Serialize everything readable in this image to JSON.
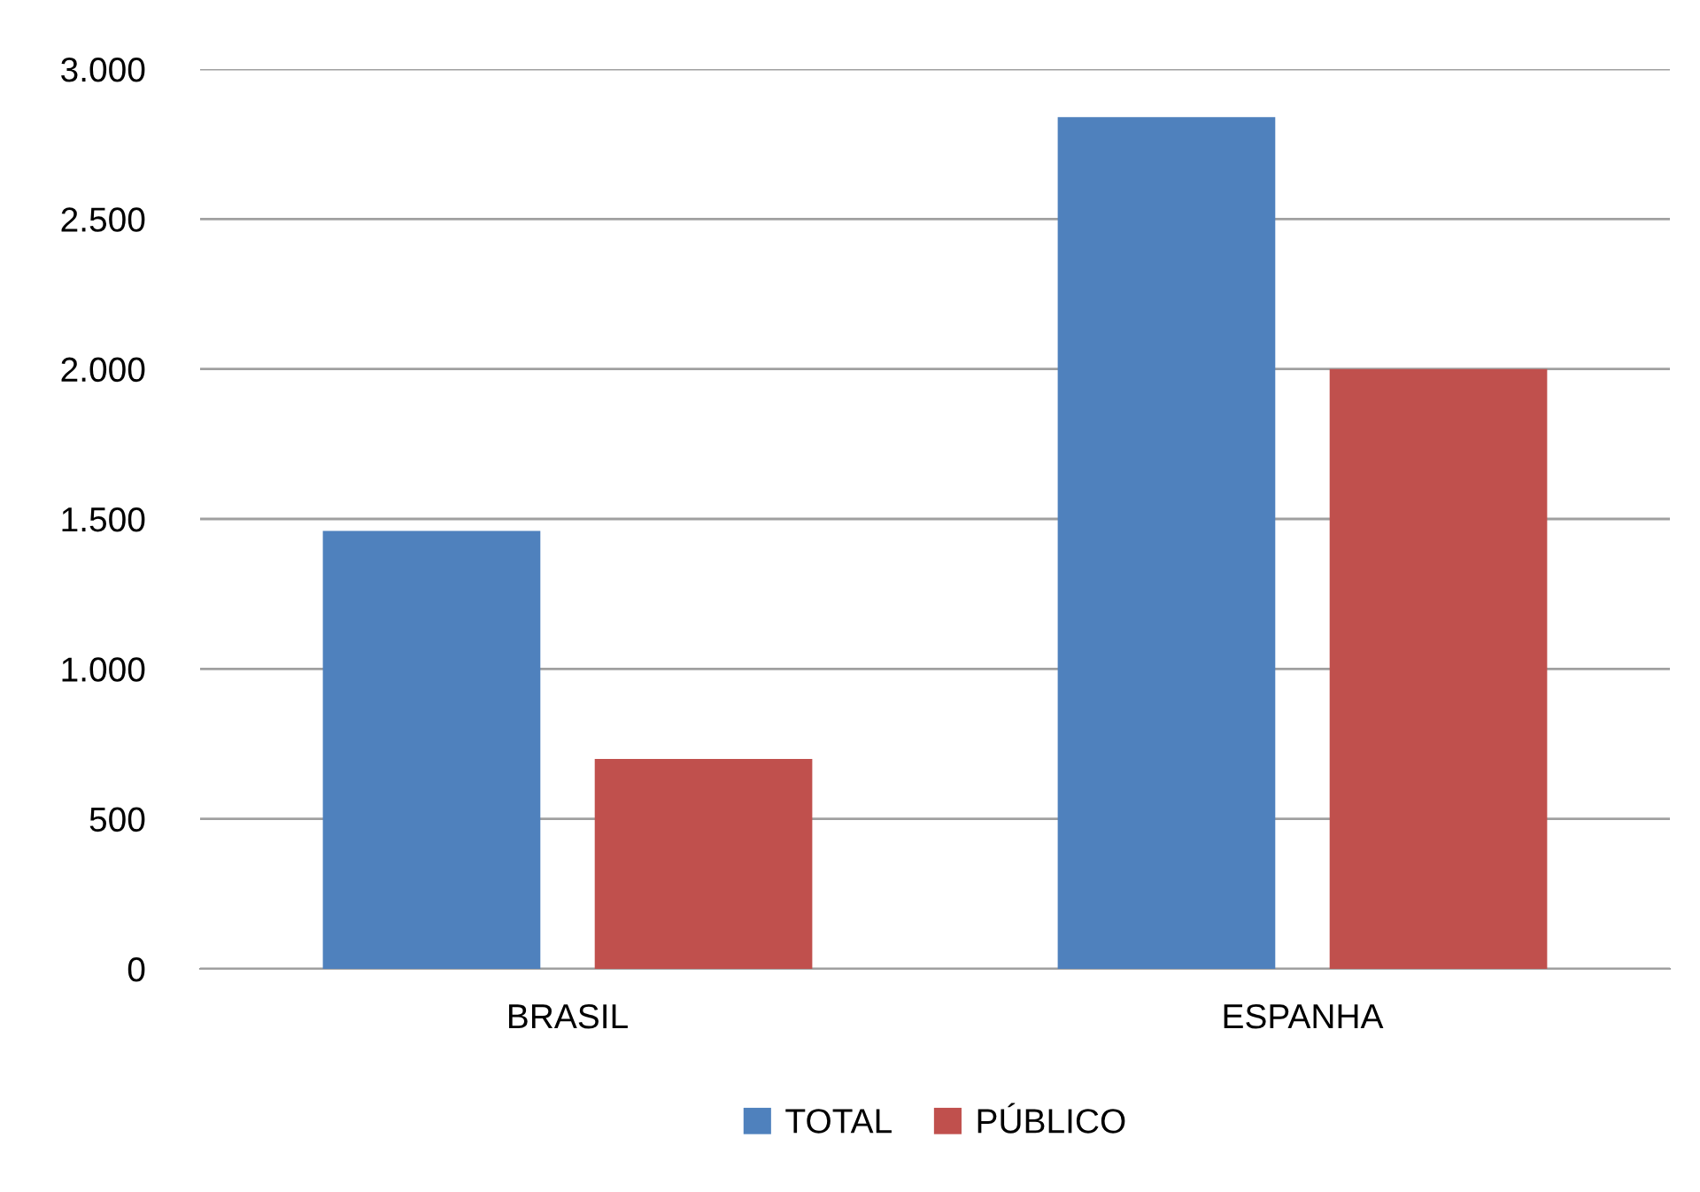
{
  "chart_data": {
    "type": "bar",
    "categories": [
      "BRASIL",
      "ESPANHA"
    ],
    "series": [
      {
        "name": "TOTAL",
        "color": "#4f81bd",
        "values": [
          1460,
          2840
        ]
      },
      {
        "name": "PÚBLICO",
        "color": "#c0504d",
        "values": [
          700,
          2000
        ]
      }
    ],
    "ylim": [
      0,
      3000
    ],
    "yticks": [
      0,
      500,
      {
        "value": 1000,
        "label": "1.000"
      },
      {
        "value": 1500,
        "label": "1.500"
      },
      {
        "value": 2000,
        "label": "2.000"
      },
      {
        "value": 2500,
        "label": "2.500"
      },
      {
        "value": 3000,
        "label": "3.000"
      }
    ],
    "grid": "y",
    "legend": "bottom"
  }
}
